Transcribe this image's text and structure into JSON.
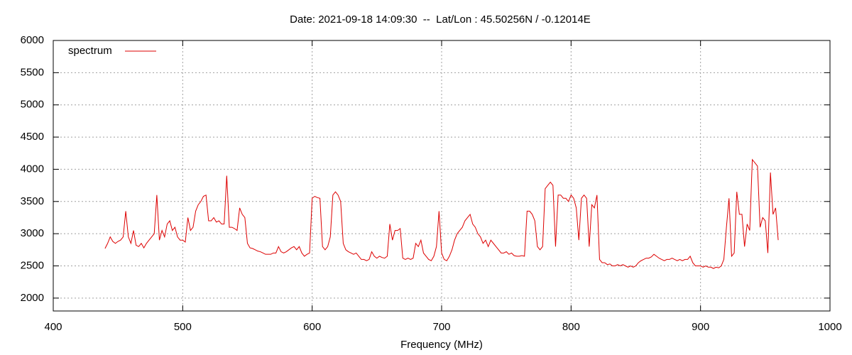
{
  "chart_data": {
    "type": "line",
    "title": "Date: 2021-09-18 14:09:30  --  Lat/Lon : 45.50256N / -0.12014E",
    "x_label": "Frequency (MHz)",
    "xlim": [
      400,
      1000
    ],
    "xticks": [
      400,
      500,
      600,
      700,
      800,
      900,
      1000
    ],
    "ylim": [
      1800,
      6000
    ],
    "yticks": [
      2000,
      2500,
      3000,
      3500,
      4000,
      4500,
      5000,
      5500,
      6000
    ],
    "grid": true,
    "legend": "upper left",
    "x": [
      440,
      442,
      444,
      446,
      448,
      450,
      452,
      454,
      456,
      458,
      460,
      462,
      464,
      466,
      468,
      470,
      472,
      474,
      476,
      478,
      480,
      482,
      484,
      486,
      488,
      490,
      492,
      494,
      496,
      498,
      500,
      502,
      504,
      506,
      508,
      510,
      512,
      514,
      516,
      518,
      520,
      522,
      524,
      526,
      528,
      530,
      532,
      534,
      536,
      538,
      540,
      542,
      544,
      546,
      548,
      550,
      552,
      554,
      556,
      558,
      560,
      562,
      564,
      566,
      568,
      570,
      572,
      574,
      576,
      578,
      580,
      582,
      584,
      586,
      588,
      590,
      592,
      594,
      596,
      598,
      600,
      602,
      604,
      606,
      608,
      610,
      612,
      614,
      616,
      618,
      620,
      622,
      624,
      626,
      628,
      630,
      632,
      634,
      636,
      638,
      640,
      642,
      644,
      646,
      648,
      650,
      652,
      654,
      656,
      658,
      660,
      662,
      664,
      666,
      668,
      670,
      672,
      674,
      676,
      678,
      680,
      682,
      684,
      686,
      688,
      690,
      692,
      694,
      696,
      698,
      700,
      702,
      704,
      706,
      708,
      710,
      712,
      714,
      716,
      718,
      720,
      722,
      724,
      726,
      728,
      730,
      732,
      734,
      736,
      738,
      740,
      742,
      744,
      746,
      748,
      750,
      752,
      754,
      756,
      758,
      760,
      762,
      764,
      766,
      768,
      770,
      772,
      774,
      776,
      778,
      780,
      782,
      784,
      786,
      788,
      790,
      792,
      794,
      796,
      798,
      800,
      802,
      804,
      806,
      808,
      810,
      812,
      814,
      816,
      818,
      820,
      822,
      824,
      826,
      828,
      830,
      832,
      834,
      836,
      838,
      840,
      842,
      844,
      846,
      848,
      850,
      852,
      854,
      856,
      858,
      860,
      862,
      864,
      866,
      868,
      870,
      872,
      874,
      876,
      878,
      880,
      882,
      884,
      886,
      888,
      890,
      892,
      894,
      896,
      898,
      900,
      902,
      904,
      906,
      908,
      910,
      912,
      914,
      916,
      918,
      920,
      922,
      924,
      926,
      928,
      930,
      932,
      934,
      936,
      938,
      940,
      942,
      944,
      946,
      948,
      950,
      952,
      954,
      956,
      958,
      960
    ],
    "series": [
      {
        "name": "spectrum",
        "color": "#dd0000",
        "values": [
          2770,
          2850,
          2950,
          2880,
          2850,
          2880,
          2900,
          2950,
          3350,
          2950,
          2850,
          3050,
          2820,
          2800,
          2850,
          2780,
          2850,
          2900,
          2950,
          3000,
          3600,
          2900,
          3050,
          2950,
          3150,
          3200,
          3050,
          3100,
          2950,
          2900,
          2900,
          2870,
          3250,
          3050,
          3100,
          3350,
          3450,
          3500,
          3580,
          3600,
          3200,
          3200,
          3250,
          3180,
          3200,
          3150,
          3150,
          3900,
          3100,
          3100,
          3080,
          3050,
          3400,
          3300,
          3250,
          2850,
          2780,
          2770,
          2750,
          2730,
          2720,
          2700,
          2680,
          2680,
          2680,
          2700,
          2700,
          2800,
          2720,
          2700,
          2720,
          2750,
          2780,
          2800,
          2750,
          2800,
          2700,
          2650,
          2680,
          2700,
          3550,
          3580,
          3560,
          3550,
          2800,
          2750,
          2800,
          2950,
          3600,
          3650,
          3600,
          3500,
          2850,
          2750,
          2720,
          2700,
          2680,
          2700,
          2650,
          2600,
          2600,
          2580,
          2600,
          2720,
          2650,
          2620,
          2650,
          2630,
          2620,
          2650,
          3150,
          2900,
          3050,
          3050,
          3080,
          2620,
          2600,
          2620,
          2600,
          2620,
          2850,
          2800,
          2900,
          2700,
          2650,
          2600,
          2580,
          2650,
          2800,
          3350,
          2700,
          2600,
          2580,
          2650,
          2750,
          2900,
          3000,
          3050,
          3100,
          3200,
          3250,
          3300,
          3150,
          3100,
          3000,
          2950,
          2850,
          2900,
          2800,
          2900,
          2850,
          2800,
          2750,
          2700,
          2700,
          2720,
          2680,
          2700,
          2660,
          2650,
          2650,
          2660,
          2650,
          3350,
          3350,
          3300,
          3200,
          2800,
          2750,
          2800,
          3700,
          3750,
          3800,
          3750,
          2800,
          3600,
          3600,
          3550,
          3550,
          3500,
          3600,
          3550,
          3400,
          2900,
          3550,
          3600,
          3550,
          2800,
          3450,
          3400,
          3600,
          2600,
          2550,
          2550,
          2520,
          2530,
          2500,
          2500,
          2520,
          2500,
          2520,
          2500,
          2480,
          2500,
          2480,
          2500,
          2550,
          2580,
          2600,
          2620,
          2620,
          2640,
          2680,
          2650,
          2620,
          2600,
          2580,
          2600,
          2600,
          2620,
          2600,
          2580,
          2600,
          2580,
          2600,
          2600,
          2650,
          2550,
          2500,
          2500,
          2500,
          2480,
          2500,
          2480,
          2480,
          2460,
          2480,
          2470,
          2500,
          2600,
          3100,
          3550,
          2650,
          2700,
          3650,
          3300,
          3300,
          2800,
          3150,
          3050,
          4150,
          4100,
          4050,
          3100,
          3250,
          3200,
          2700,
          3950,
          3300,
          3400,
          2900
        ]
      }
    ]
  }
}
